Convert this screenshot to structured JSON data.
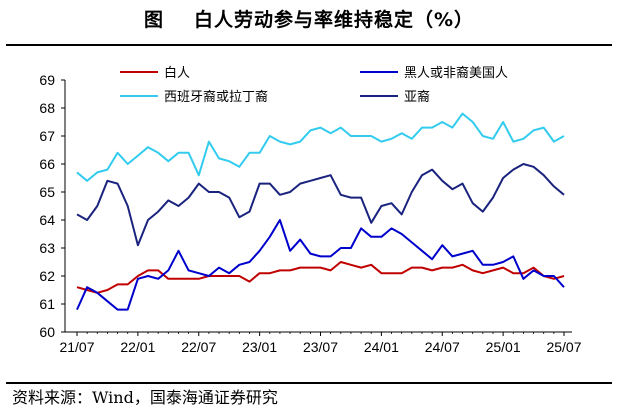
{
  "header": {
    "figure_label": "图",
    "title": "白人劳动参与率维持稳定（%）"
  },
  "source": "资料来源：Wind，国泰海通证券研究",
  "chart_data": {
    "type": "line",
    "title": "白人劳动参与率维持稳定（%）",
    "ylim": [
      60,
      69
    ],
    "y_ticks": [
      "60",
      "61",
      "62",
      "63",
      "64",
      "65",
      "66",
      "67",
      "68",
      "69"
    ],
    "x_tick_labels": [
      "21/07",
      "22/01",
      "22/07",
      "23/01",
      "23/07",
      "24/01",
      "24/07",
      "25/01",
      "25/07"
    ],
    "x": [
      "21/07",
      "21/08",
      "21/09",
      "21/10",
      "21/11",
      "21/12",
      "22/01",
      "22/02",
      "22/03",
      "22/04",
      "22/05",
      "22/06",
      "22/07",
      "22/08",
      "22/09",
      "22/10",
      "22/11",
      "22/12",
      "23/01",
      "23/02",
      "23/03",
      "23/04",
      "23/05",
      "23/06",
      "23/07",
      "23/08",
      "23/09",
      "23/10",
      "23/11",
      "23/12",
      "24/01",
      "24/02",
      "24/03",
      "24/04",
      "24/05",
      "24/06",
      "24/07",
      "24/08",
      "24/09",
      "24/10",
      "24/11",
      "24/12",
      "25/01",
      "25/02",
      "25/03",
      "25/04",
      "25/05",
      "25/06",
      "25/07"
    ],
    "legend_position": "top",
    "grid": false,
    "series": [
      {
        "name": "白人",
        "color": "#c00000",
        "values": [
          61.6,
          61.5,
          61.4,
          61.5,
          61.7,
          61.7,
          62.0,
          62.2,
          62.2,
          61.9,
          61.9,
          61.9,
          61.9,
          62.0,
          62.0,
          62.0,
          62.0,
          61.8,
          62.1,
          62.1,
          62.2,
          62.2,
          62.3,
          62.3,
          62.3,
          62.2,
          62.5,
          62.4,
          62.3,
          62.4,
          62.1,
          62.1,
          62.1,
          62.3,
          62.3,
          62.2,
          62.3,
          62.3,
          62.4,
          62.2,
          62.1,
          62.2,
          62.3,
          62.1,
          62.1,
          62.3,
          62.0,
          61.9,
          62.0
        ]
      },
      {
        "name": "黑人或非裔美国人",
        "color": "#0000cc",
        "values": [
          60.8,
          61.6,
          61.4,
          61.1,
          60.8,
          60.8,
          61.9,
          62.0,
          61.9,
          62.2,
          62.9,
          62.2,
          62.1,
          62.0,
          62.3,
          62.1,
          62.4,
          62.5,
          62.9,
          63.4,
          64.0,
          62.9,
          63.3,
          62.8,
          62.7,
          62.7,
          63.0,
          63.0,
          63.7,
          63.4,
          63.4,
          63.7,
          63.5,
          63.2,
          62.9,
          62.6,
          63.1,
          62.7,
          62.8,
          62.9,
          62.4,
          62.4,
          62.5,
          62.7,
          61.9,
          62.2,
          62.0,
          62.0,
          61.6
        ]
      },
      {
        "name": "西班牙裔或拉丁裔",
        "color": "#33ccee",
        "values": [
          65.7,
          65.4,
          65.7,
          65.8,
          66.4,
          66.0,
          66.3,
          66.6,
          66.4,
          66.1,
          66.4,
          66.4,
          65.6,
          66.8,
          66.2,
          66.1,
          65.9,
          66.4,
          66.4,
          67.0,
          66.8,
          66.7,
          66.8,
          67.2,
          67.3,
          67.1,
          67.3,
          67.0,
          67.0,
          67.0,
          66.8,
          66.9,
          67.1,
          66.9,
          67.3,
          67.3,
          67.5,
          67.3,
          67.8,
          67.5,
          67.0,
          66.9,
          67.5,
          66.8,
          66.9,
          67.2,
          67.3,
          66.8,
          67.0
        ]
      },
      {
        "name": "亚裔",
        "color": "#1a237e",
        "values": [
          64.2,
          64.0,
          64.5,
          65.4,
          65.3,
          64.5,
          63.1,
          64.0,
          64.3,
          64.7,
          64.5,
          64.8,
          65.3,
          65.0,
          65.0,
          64.8,
          64.1,
          64.3,
          65.3,
          65.3,
          64.9,
          65.0,
          65.3,
          65.4,
          65.5,
          65.6,
          64.9,
          64.8,
          64.8,
          63.9,
          64.5,
          64.6,
          64.2,
          65.0,
          65.6,
          65.8,
          65.4,
          65.1,
          65.3,
          64.6,
          64.3,
          64.8,
          65.5,
          65.8,
          66.0,
          65.9,
          65.6,
          65.2,
          64.9
        ]
      }
    ]
  }
}
